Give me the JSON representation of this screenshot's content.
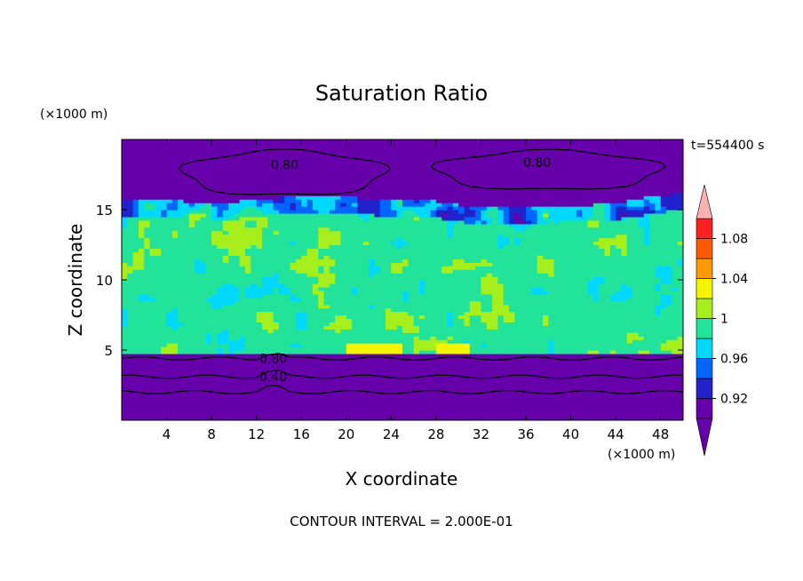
{
  "chart_data": {
    "type": "heatmap",
    "title": "Saturation Ratio",
    "xlabel": "X coordinate",
    "ylabel": "Z coordinate",
    "x_unit": "(×1000 m)",
    "y_unit": "(×1000 m)",
    "xlim": [
      0,
      50
    ],
    "ylim": [
      0,
      20
    ],
    "x_ticks": [
      4,
      8,
      12,
      16,
      20,
      24,
      28,
      32,
      36,
      40,
      44,
      48
    ],
    "y_ticks": [
      5,
      10,
      15
    ],
    "time_label": "t=554400 s",
    "footer": "CONTOUR INTERVAL = 2.000E-01",
    "colorbar": {
      "levels": [
        0.9,
        0.92,
        0.94,
        0.96,
        0.98,
        1.0,
        1.02,
        1.04,
        1.06,
        1.08,
        1.1
      ],
      "tick_labels": [
        "1.08",
        "1.04",
        "1",
        "0.96",
        "0.92"
      ],
      "colors": [
        "#6600aa",
        "#2222cc",
        "#0066ff",
        "#00d8ff",
        "#22e39a",
        "#a6ef1c",
        "#f5f500",
        "#ff9900",
        "#ff5a00",
        "#ff2020"
      ],
      "over_color": "#ffb0b0",
      "under_color": "#6600aa"
    },
    "contour_labels": [
      {
        "x": 37,
        "y": 18.4,
        "text": "0.80"
      },
      {
        "x": 14.5,
        "y": 18.2,
        "text": "0.80"
      },
      {
        "x": 13.5,
        "y": 4.4,
        "text": "0.80"
      },
      {
        "x": 13.5,
        "y": 3.1,
        "text": "0.40"
      }
    ]
  }
}
